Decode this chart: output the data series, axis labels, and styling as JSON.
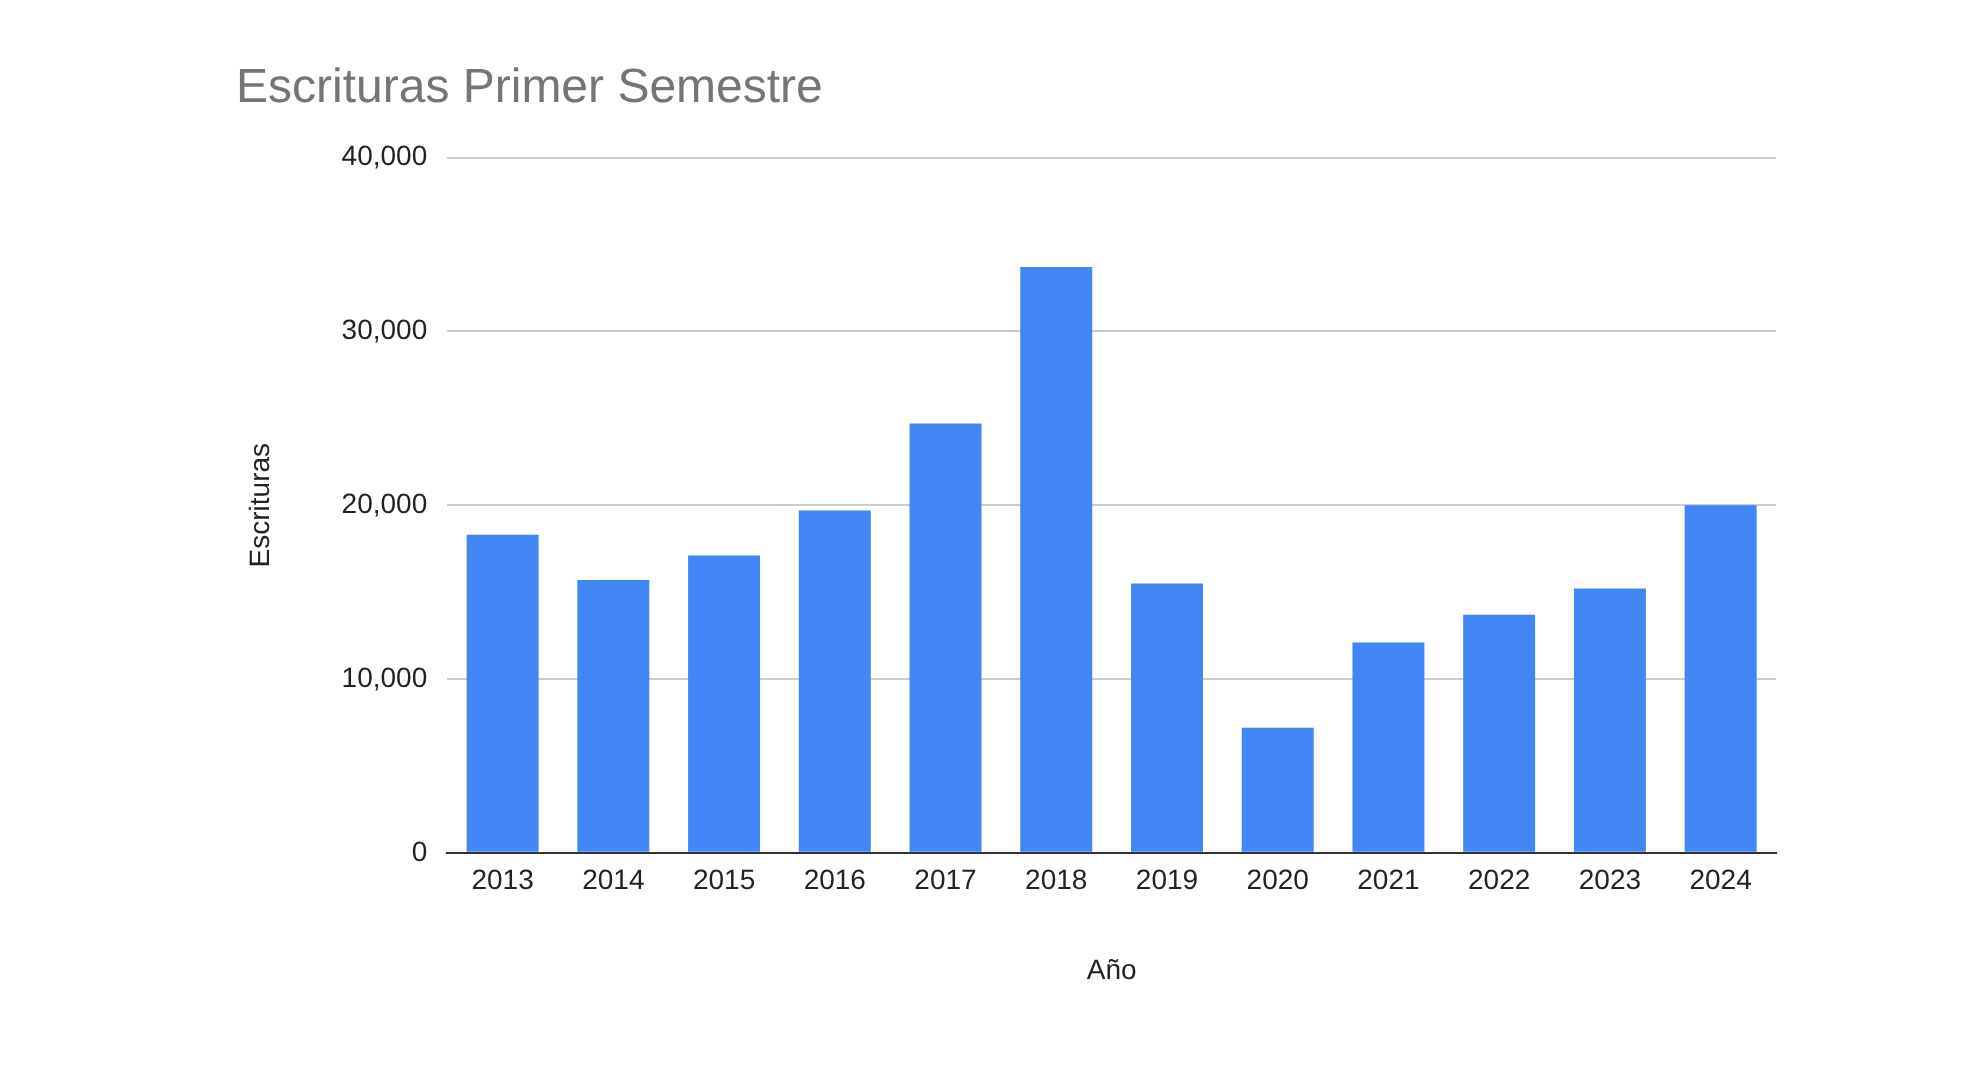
{
  "chart_data": {
    "type": "bar",
    "title": "Escrituras Primer Semestre",
    "xlabel": "Año",
    "ylabel": "Escrituras",
    "categories": [
      "2013",
      "2014",
      "2015",
      "2016",
      "2017",
      "2018",
      "2019",
      "2020",
      "2021",
      "2022",
      "2023",
      "2024"
    ],
    "values": [
      18300,
      15700,
      17100,
      19700,
      24700,
      33700,
      15500,
      7200,
      12100,
      13700,
      15200,
      20000
    ],
    "color": "#4285f4",
    "ylim": [
      0,
      40000
    ],
    "yticks": [
      {
        "value": 0,
        "label": "0"
      },
      {
        "value": 10000,
        "label": "10,000"
      },
      {
        "value": 20000,
        "label": "20,000"
      },
      {
        "value": 30000,
        "label": "30,000"
      },
      {
        "value": 40000,
        "label": "40,000"
      }
    ],
    "grid": "y",
    "legend": false
  }
}
